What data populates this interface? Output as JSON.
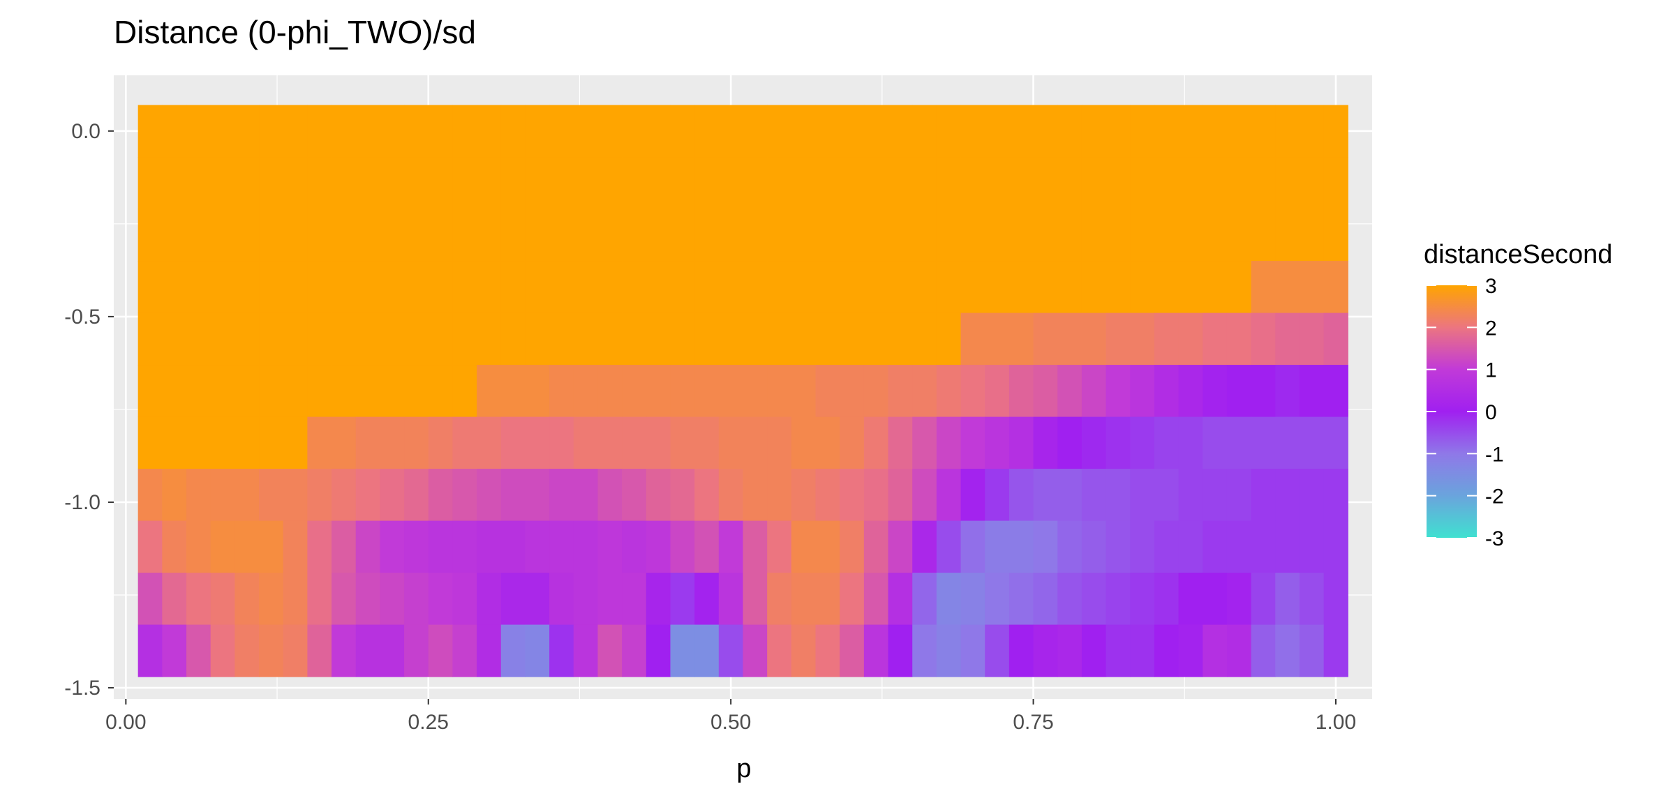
{
  "chart_data": {
    "type": "heatmap",
    "title": "Distance (0-phi_TWO)/sd",
    "xlabel": "p",
    "ylabel": "",
    "xlim": [
      -0.01,
      1.03
    ],
    "ylim": [
      -1.53,
      0.15
    ],
    "x_ticks": [
      0.0,
      0.25,
      0.5,
      0.75,
      1.0
    ],
    "x_tick_labels": [
      "0.00",
      "0.25",
      "0.50",
      "0.75",
      "1.00"
    ],
    "y_ticks": [
      0.0,
      -0.5,
      -1.0,
      -1.5
    ],
    "y_tick_labels": [
      "0.0",
      "-0.5",
      "-1.0",
      "-1.5"
    ],
    "grid": true,
    "panel_background": "#ebebeb",
    "x": [
      0.02,
      0.04,
      0.06,
      0.08,
      0.1,
      0.12,
      0.14,
      0.16,
      0.18,
      0.2,
      0.22,
      0.24,
      0.26,
      0.28,
      0.3,
      0.32,
      0.34,
      0.36,
      0.38,
      0.4,
      0.42,
      0.44,
      0.46,
      0.48,
      0.5,
      0.52,
      0.54,
      0.56,
      0.58,
      0.6,
      0.62,
      0.64,
      0.66,
      0.68,
      0.7,
      0.72,
      0.74,
      0.76,
      0.78,
      0.8,
      0.82,
      0.84,
      0.86,
      0.88,
      0.9,
      0.92,
      0.94,
      0.96,
      0.98,
      1.0
    ],
    "y": [
      0.0,
      -0.14,
      -0.28,
      -0.42,
      -0.56,
      -0.7,
      -0.84,
      -0.98,
      -1.12,
      -1.26,
      -1.4
    ],
    "values": [
      [
        3,
        3,
        3,
        3,
        3,
        3,
        3,
        3,
        3,
        3,
        3,
        3,
        3,
        3,
        3,
        3,
        3,
        3,
        3,
        3,
        3,
        3,
        3,
        3,
        3,
        3,
        3,
        3,
        3,
        3,
        3,
        3,
        3,
        3,
        3,
        3,
        3,
        3,
        3,
        3,
        3,
        3,
        3,
        3,
        3,
        3,
        3,
        3,
        3,
        3
      ],
      [
        3,
        3,
        3,
        3,
        3,
        3,
        3,
        3,
        3,
        3,
        3,
        3,
        3,
        3,
        3,
        3,
        3,
        3,
        3,
        3,
        3,
        3,
        3,
        3,
        3,
        3,
        3,
        3,
        3,
        3,
        3,
        3,
        3,
        3,
        3,
        3,
        3,
        3,
        3,
        3,
        3,
        3,
        3,
        3,
        3,
        3,
        3,
        3,
        3,
        3
      ],
      [
        3,
        3,
        3,
        3,
        3,
        3,
        3,
        3,
        3,
        3,
        3,
        3,
        3,
        3,
        3,
        3,
        3,
        3,
        3,
        3,
        3,
        3,
        3,
        3,
        3,
        3,
        3,
        3,
        3,
        3,
        3,
        3,
        3,
        3,
        3,
        3,
        3,
        3,
        3,
        3,
        3,
        3,
        3,
        3,
        3,
        3,
        3,
        3,
        3,
        3
      ],
      [
        3,
        3,
        3,
        3,
        3,
        3,
        3,
        3,
        3,
        3,
        3,
        3,
        3,
        3,
        3,
        3,
        3,
        3,
        3,
        3,
        3,
        3,
        3,
        3,
        3,
        3,
        3,
        3,
        3,
        3,
        3,
        3,
        3,
        3,
        3,
        3,
        3,
        3,
        3,
        3,
        3,
        3,
        3,
        3,
        3,
        3,
        2.5,
        2.5,
        2.5,
        2.5
      ],
      [
        3,
        3,
        3,
        3,
        3,
        3,
        3,
        3,
        3,
        3,
        3,
        3,
        3,
        3,
        3,
        3,
        3,
        3,
        3,
        3,
        3,
        3,
        3,
        3,
        3,
        3,
        3,
        3,
        3,
        3,
        3,
        3,
        3,
        3,
        2.4,
        2.4,
        2.4,
        2.3,
        2.3,
        2.3,
        2.2,
        2.2,
        2.1,
        2.1,
        2.0,
        2.0,
        1.9,
        1.8,
        1.8,
        1.7
      ],
      [
        3,
        3,
        3,
        3,
        3,
        3,
        3,
        3,
        3,
        3,
        3,
        3,
        3,
        3,
        2.5,
        2.5,
        2.5,
        2.4,
        2.4,
        2.4,
        2.4,
        2.4,
        2.4,
        2.4,
        2.4,
        2.4,
        2.4,
        2.4,
        2.3,
        2.3,
        2.3,
        2.2,
        2.2,
        2.1,
        2.0,
        1.9,
        1.7,
        1.6,
        1.4,
        1.2,
        1.0,
        0.8,
        0.5,
        0.3,
        0.1,
        0.0,
        0.0,
        -0.1,
        0.0,
        0.0
      ],
      [
        3,
        3,
        3,
        3,
        3,
        3,
        3,
        2.4,
        2.4,
        2.3,
        2.3,
        2.3,
        2.2,
        2.1,
        2.1,
        2.0,
        2.0,
        2.0,
        2.1,
        2.1,
        2.1,
        2.1,
        2.2,
        2.2,
        2.3,
        2.3,
        2.3,
        2.4,
        2.4,
        2.3,
        2.1,
        1.8,
        1.5,
        1.2,
        1.0,
        0.8,
        0.6,
        0.2,
        0.0,
        -0.1,
        -0.2,
        -0.3,
        -0.4,
        -0.4,
        -0.5,
        -0.5,
        -0.5,
        -0.5,
        -0.5,
        -0.5
      ],
      [
        2.4,
        2.5,
        2.4,
        2.4,
        2.4,
        2.3,
        2.3,
        2.2,
        2.1,
        2.0,
        1.9,
        1.8,
        1.6,
        1.5,
        1.4,
        1.3,
        1.3,
        1.2,
        1.2,
        1.4,
        1.5,
        1.7,
        1.8,
        2.0,
        2.2,
        2.3,
        2.3,
        2.2,
        2.1,
        2.0,
        1.9,
        1.7,
        1.3,
        0.8,
        0.1,
        -0.3,
        -0.6,
        -0.7,
        -0.7,
        -0.6,
        -0.6,
        -0.5,
        -0.5,
        -0.4,
        -0.4,
        -0.4,
        -0.3,
        -0.3,
        -0.3,
        -0.3
      ],
      [
        2.0,
        2.3,
        2.4,
        2.5,
        2.5,
        2.5,
        2.3,
        1.9,
        1.6,
        1.2,
        1.0,
        0.9,
        0.8,
        0.8,
        0.7,
        0.7,
        0.8,
        0.8,
        0.8,
        0.9,
        0.8,
        0.9,
        1.2,
        1.4,
        1.0,
        1.6,
        2.0,
        2.4,
        2.4,
        2.2,
        1.7,
        1.2,
        0.3,
        -0.5,
        -0.9,
        -1.1,
        -1.1,
        -1.0,
        -0.8,
        -0.7,
        -0.6,
        -0.5,
        -0.4,
        -0.4,
        -0.3,
        -0.3,
        -0.3,
        -0.3,
        -0.3,
        -0.3
      ],
      [
        1.4,
        1.8,
        2.0,
        2.1,
        2.3,
        2.4,
        2.3,
        1.9,
        1.5,
        1.3,
        1.2,
        1.1,
        1.0,
        0.9,
        0.5,
        0.3,
        0.3,
        0.7,
        0.8,
        0.9,
        0.9,
        0.2,
        -0.3,
        0.1,
        0.8,
        1.6,
        2.2,
        2.3,
        2.3,
        2.0,
        1.5,
        0.6,
        -0.8,
        -1.3,
        -1.2,
        -1.0,
        -0.9,
        -0.8,
        -0.6,
        -0.5,
        -0.4,
        -0.3,
        -0.2,
        0.0,
        0.0,
        0.1,
        -0.4,
        -0.7,
        -0.5,
        -0.3
      ],
      [
        0.6,
        1.0,
        1.5,
        2.0,
        2.2,
        2.3,
        2.2,
        1.7,
        1.0,
        0.7,
        0.7,
        1.1,
        1.3,
        1.1,
        0.5,
        -1.2,
        -1.3,
        -0.2,
        0.8,
        1.4,
        1.1,
        0.0,
        -1.5,
        -1.5,
        -0.5,
        1.2,
        2.0,
        2.2,
        2.0,
        1.6,
        0.8,
        0.0,
        -1.0,
        -1.2,
        -1.0,
        -0.5,
        0.0,
        0.2,
        0.3,
        0.0,
        -0.2,
        -0.2,
        0.0,
        0.1,
        0.6,
        0.5,
        -0.7,
        -0.9,
        -0.7,
        -0.3
      ]
    ],
    "legend": {
      "title": "distanceSecond",
      "position": "right",
      "labels": [
        "3",
        "2",
        "1",
        "0",
        "-1",
        "-2",
        "-3"
      ],
      "values": [
        3,
        2,
        1,
        0,
        -1,
        -2,
        -3
      ],
      "colors": [
        {
          "v": 3,
          "c": "#ffa500"
        },
        {
          "v": 2,
          "c": "#ec7580"
        },
        {
          "v": 1,
          "c": "#c13ad8"
        },
        {
          "v": 0,
          "c": "#a020f0"
        },
        {
          "v": -1,
          "c": "#8f78e8"
        },
        {
          "v": -2,
          "c": "#6aa4dd"
        },
        {
          "v": -3,
          "c": "#40e0d0"
        }
      ]
    }
  }
}
